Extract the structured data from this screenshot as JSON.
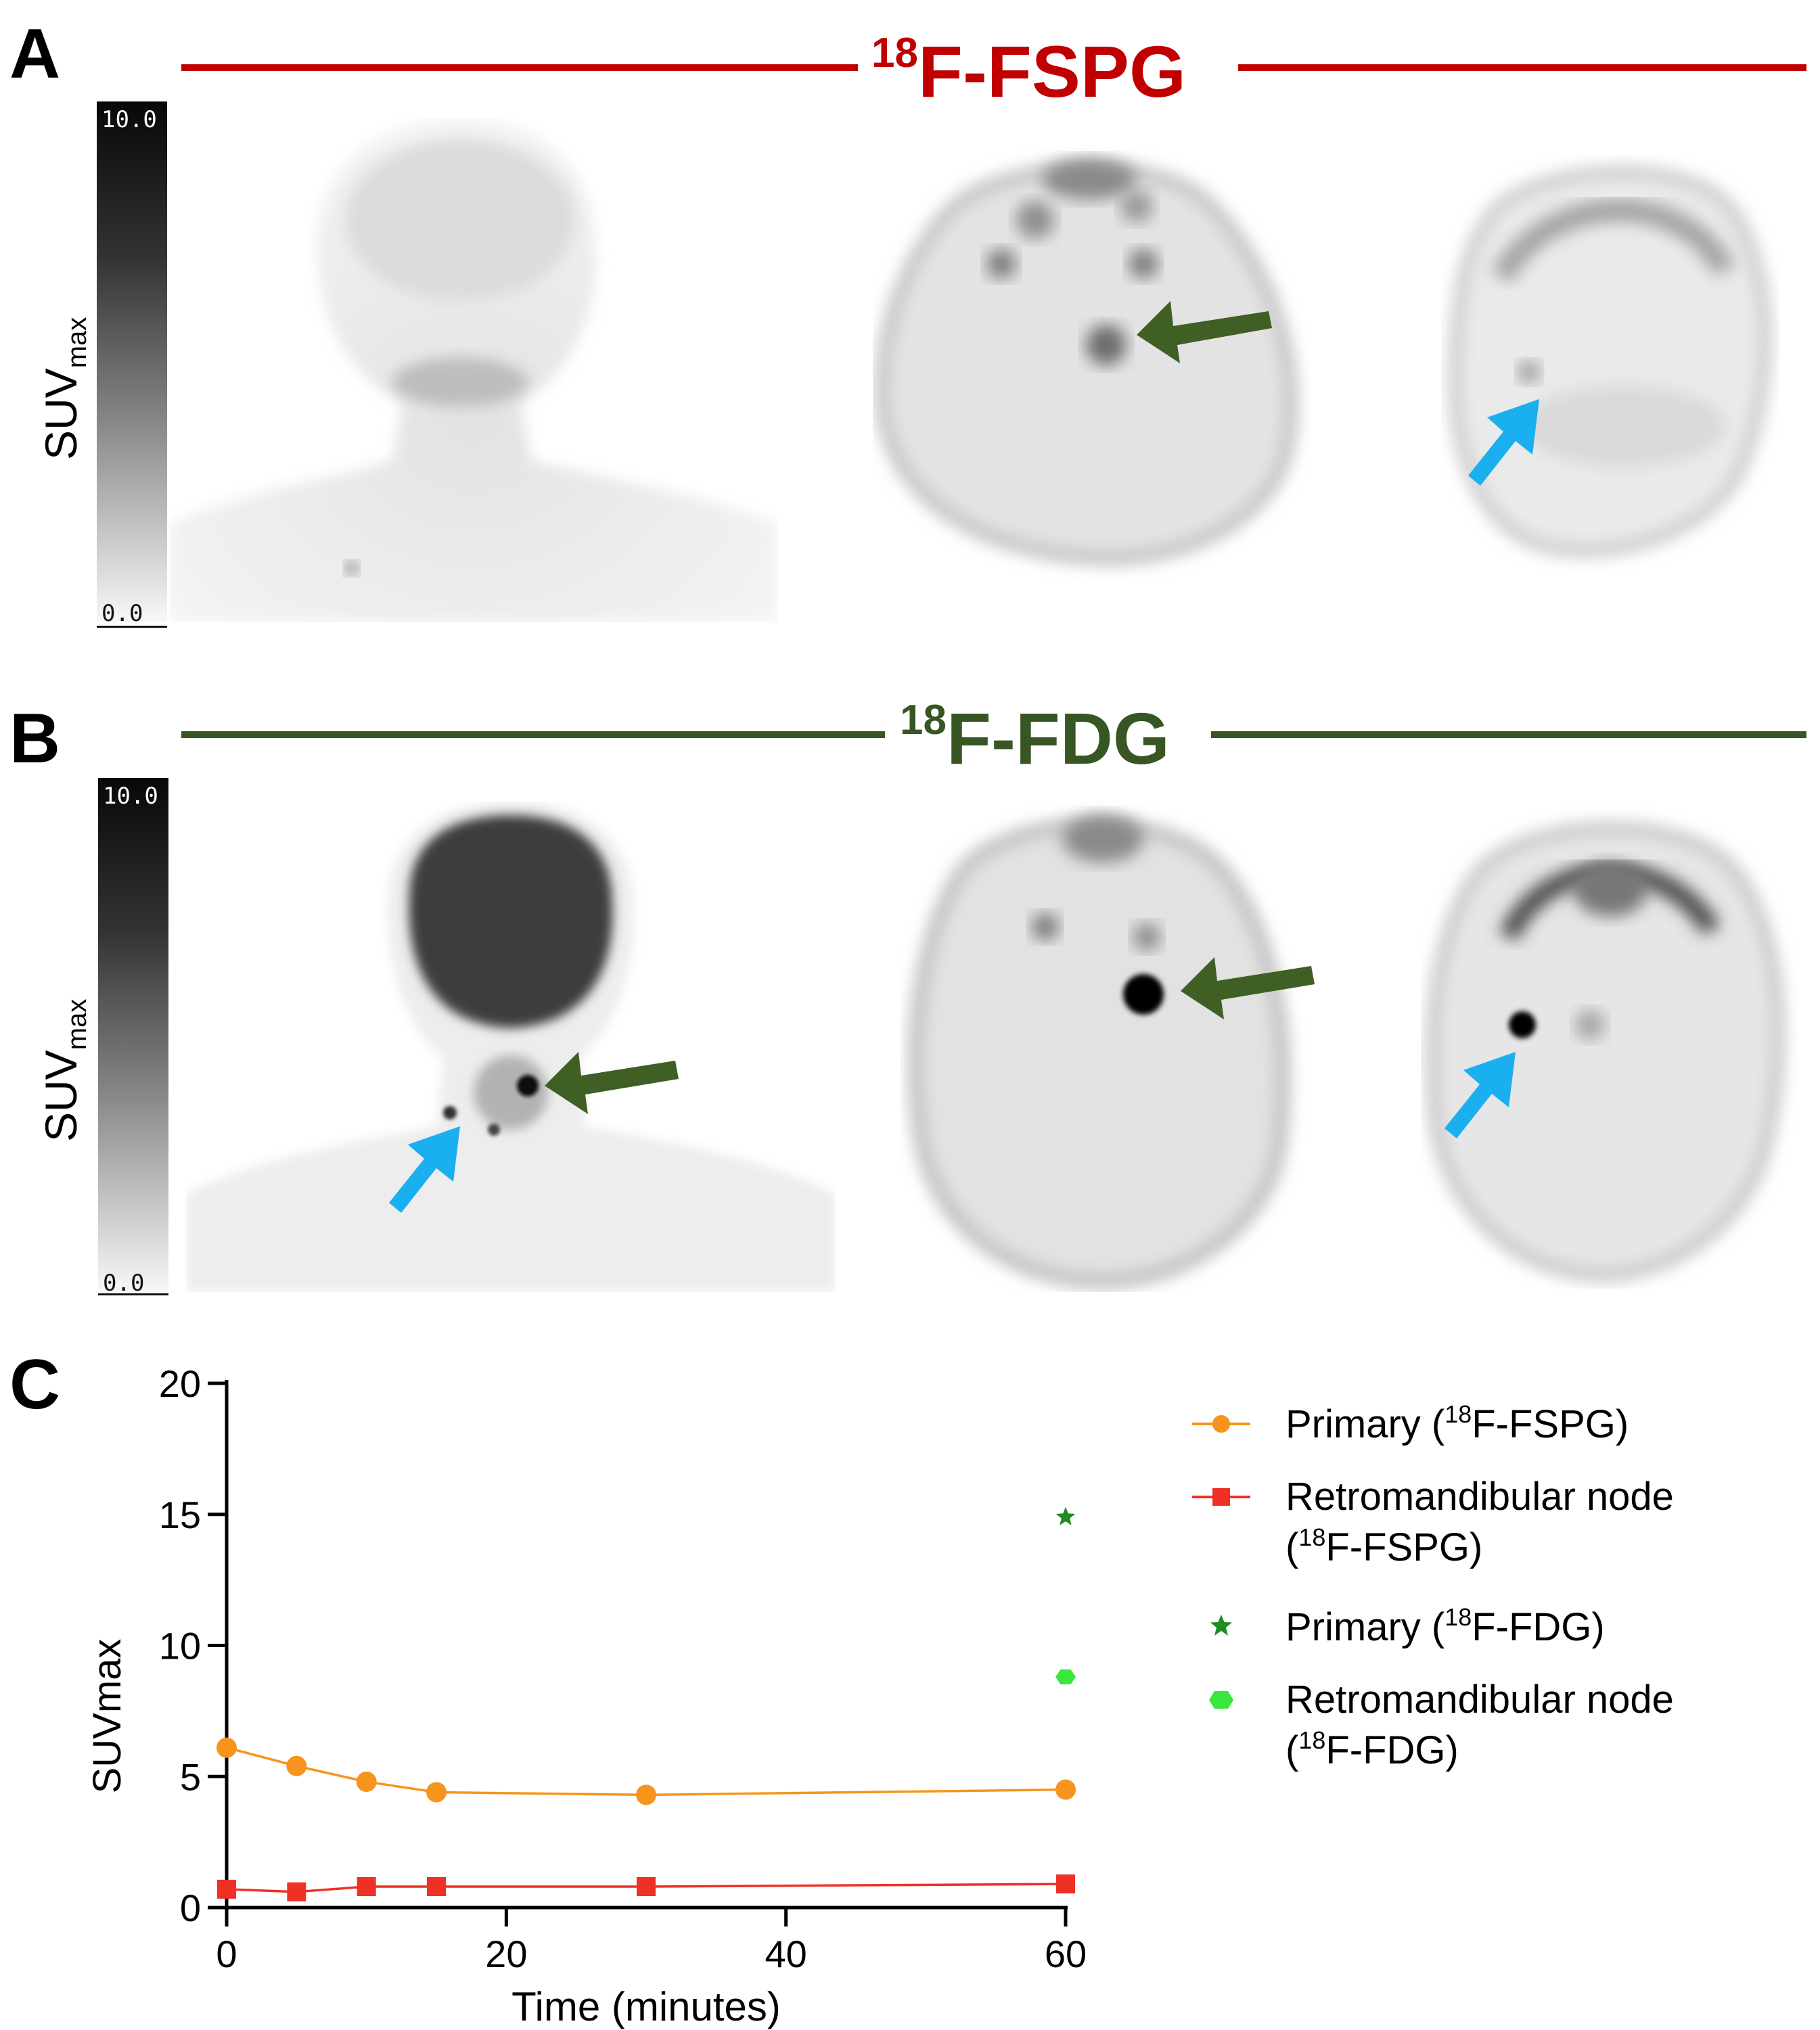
{
  "panel_a": {
    "letter": "A",
    "banner_sup": "18",
    "banner_main": "F-FSPG",
    "banner_color": "#c00000",
    "colorbar_max": "10.0",
    "colorbar_min": "0.0",
    "colorbar_label_main": "SUV",
    "colorbar_label_sub": "max"
  },
  "panel_b": {
    "letter": "B",
    "banner_sup": "18",
    "banner_main": "F-FDG",
    "banner_color": "#375623",
    "colorbar_max": "10.0",
    "colorbar_min": "0.0",
    "colorbar_label_main": "SUV",
    "colorbar_label_sub": "max"
  },
  "arrow_colors": {
    "primary": "#3f5f24",
    "node": "#1ab0ef"
  },
  "panel_c": {
    "letter": "C",
    "chart_data": {
      "type": "line",
      "xlabel": "Time (minutes)",
      "ylabel": "SUVmax",
      "xlim": [
        0,
        60
      ],
      "ylim": [
        0,
        20
      ],
      "xticks": [
        0,
        20,
        40,
        60
      ],
      "yticks": [
        0,
        5,
        10,
        15,
        20
      ],
      "legend_position": "right",
      "series": [
        {
          "name_pre": "Primary (",
          "name_sup": "18",
          "name_post": "F-FSPG)",
          "name_line2": "",
          "color": "#f7941d",
          "marker": "circle",
          "line": true,
          "x": [
            0,
            5,
            10,
            15,
            30,
            60
          ],
          "y": [
            6.1,
            5.4,
            4.8,
            4.4,
            4.3,
            4.5
          ]
        },
        {
          "name_pre": "Retromandibular node",
          "name_sup": "",
          "name_post": "",
          "name_line2_pre": "(",
          "name_line2_sup": "18",
          "name_line2_post": "F-FSPG)",
          "color": "#ee3124",
          "marker": "square",
          "line": true,
          "x": [
            0,
            5,
            10,
            15,
            30,
            60
          ],
          "y": [
            0.7,
            0.6,
            0.8,
            0.8,
            0.8,
            0.9
          ]
        },
        {
          "name_pre": "Primary (",
          "name_sup": "18",
          "name_post": "F-FDG)",
          "name_line2": "",
          "color": "#1e8c1e",
          "marker": "star",
          "line": false,
          "x": [
            60
          ],
          "y": [
            14.9
          ]
        },
        {
          "name_pre": "Retromandibular node",
          "name_sup": "",
          "name_post": "",
          "name_line2_pre": "(",
          "name_line2_sup": "18",
          "name_line2_post": "F-FDG)",
          "color": "#39e639",
          "marker": "hexagon",
          "line": false,
          "x": [
            60
          ],
          "y": [
            8.8
          ]
        }
      ]
    }
  }
}
